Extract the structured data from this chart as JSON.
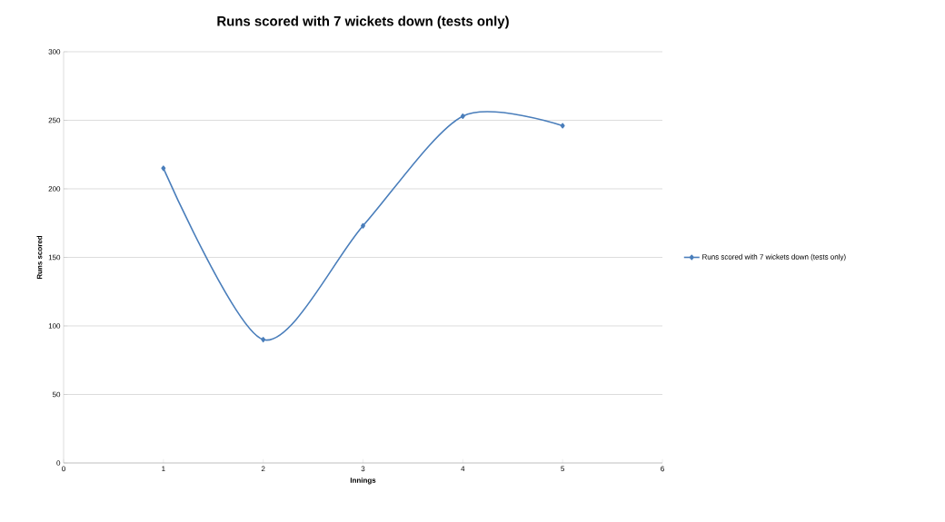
{
  "chart_data": {
    "type": "line",
    "title": "Runs scored with 7 wickets down (tests only)",
    "xlabel": "Innings",
    "ylabel": "Runs scored",
    "x": [
      1,
      2,
      3,
      4,
      5
    ],
    "series": [
      {
        "name": "Runs scored with 7 wickets down (tests only)",
        "color": "#4a7ebb",
        "values": [
          215,
          90,
          173,
          253,
          246
        ]
      }
    ],
    "xlim": [
      0,
      6
    ],
    "xticks": [
      0,
      1,
      2,
      3,
      4,
      5,
      6
    ],
    "ylim": [
      0,
      300
    ],
    "yticks": [
      0,
      50,
      100,
      150,
      200,
      250,
      300
    ],
    "grid": "y",
    "legend": "right",
    "marker": "diamond",
    "line_style": "solid"
  }
}
